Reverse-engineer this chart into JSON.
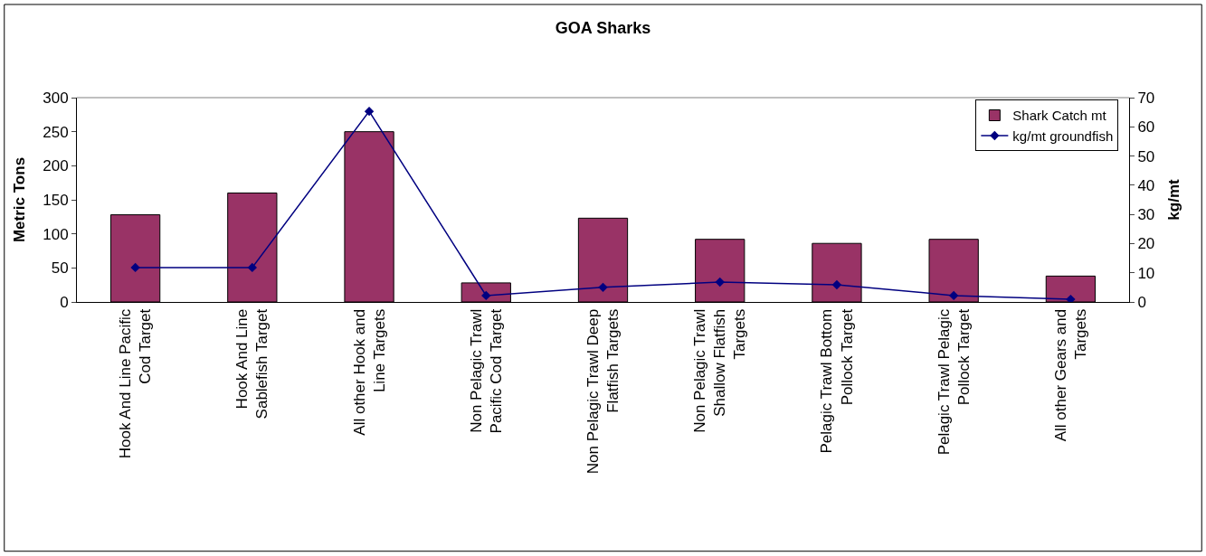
{
  "chart_data": {
    "type": "bar",
    "title": "GOA Sharks",
    "ylabel": "Metric Tons",
    "y2label": "kg/mt",
    "categories": [
      "Hook And Line Pacific Cod Target",
      "Hook And Line Sablefish Target",
      "All other Hook and Line Targets",
      "Non Pelagic Trawl Pacific Cod Target",
      "Non Pelagic Trawl Deep Flatfish Targets",
      "Non Pelagic Trawl Shallow Flatfish Targets",
      "Pelagic Trawl Bottom Pollock Target",
      "Pelagic Trawl Pelagic Pollock Target",
      "All other Gears and Targets"
    ],
    "series": [
      {
        "name": "Shark Catch mt",
        "color": "#993366",
        "values": [
          128,
          160,
          250,
          28,
          123,
          92,
          86,
          92,
          38
        ]
      },
      {
        "name": "kg/mt groundfish",
        "type": "line",
        "axis": "y2",
        "color": "#000080",
        "marker": "diamond",
        "values": [
          11.8,
          11.8,
          65.3,
          2.2,
          5,
          6.8,
          5.9,
          2.2,
          0.9
        ]
      }
    ],
    "ylim": [
      0,
      300
    ],
    "yticks": [
      0,
      50,
      100,
      150,
      200,
      250,
      300
    ],
    "y2lim": [
      0,
      70
    ],
    "y2ticks": [
      0,
      10,
      20,
      30,
      40,
      50,
      60,
      70
    ],
    "legend": "top right",
    "grid": false
  }
}
